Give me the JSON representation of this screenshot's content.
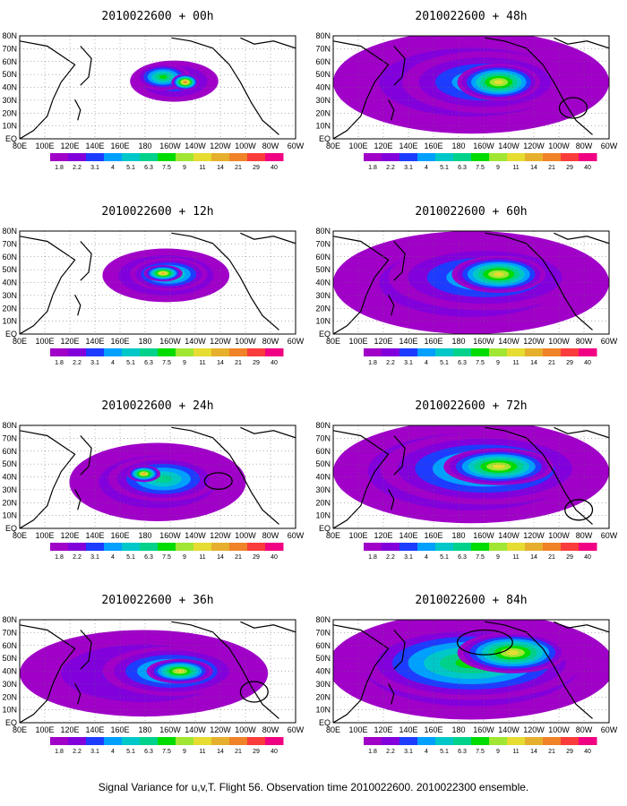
{
  "caption": "Signal Variance for u,v,T. Flight 56. Observation time 2010022600. 2010022300 ensemble.",
  "colorbar": {
    "labels": [
      "1.8",
      "2.2",
      "3.1",
      "4",
      "5.1",
      "6.3",
      "7.5",
      "9",
      "11",
      "14",
      "21",
      "29",
      "40"
    ],
    "colors": [
      "#a000c8",
      "#8200dc",
      "#1e3cff",
      "#00a0ff",
      "#00c8c8",
      "#00d28c",
      "#00dc00",
      "#a0e632",
      "#e6dc32",
      "#e6af2d",
      "#f08228",
      "#fa3c3c",
      "#f00082"
    ]
  },
  "x_ticks": [
    "80E",
    "100E",
    "120E",
    "140E",
    "160E",
    "180",
    "160W",
    "140W",
    "120W",
    "100W",
    "80W",
    "60W"
  ],
  "y_ticks": [
    "80N",
    "70N",
    "60N",
    "50N",
    "40N",
    "30N",
    "20N",
    "10N",
    "EQ"
  ],
  "panels": [
    {
      "title": "2010022600 + 00h",
      "lead_hours": 0,
      "blobs": [
        [
          0.56,
          0.44,
          0.16,
          0.2,
          3
        ],
        [
          0.52,
          0.4,
          0.1,
          0.13,
          6
        ],
        [
          0.6,
          0.45,
          0.05,
          0.08,
          10
        ]
      ],
      "circle": null
    },
    {
      "title": "2010022600 + 12h",
      "lead_hours": 12,
      "blobs": [
        [
          0.53,
          0.43,
          0.23,
          0.26,
          3
        ],
        [
          0.54,
          0.42,
          0.14,
          0.16,
          6
        ],
        [
          0.52,
          0.41,
          0.07,
          0.08,
          9
        ]
      ],
      "circle": null
    },
    {
      "title": "2010022600 + 24h",
      "lead_hours": 24,
      "blobs": [
        [
          0.5,
          0.55,
          0.32,
          0.38,
          2
        ],
        [
          0.52,
          0.52,
          0.2,
          0.22,
          5
        ],
        [
          0.45,
          0.47,
          0.06,
          0.08,
          9
        ]
      ],
      "circle": [
        0.72,
        0.54,
        0.05,
        0.08
      ]
    },
    {
      "title": "2010022600 + 36h",
      "lead_hours": 36,
      "blobs": [
        [
          0.45,
          0.52,
          0.45,
          0.42,
          2
        ],
        [
          0.55,
          0.5,
          0.25,
          0.24,
          5
        ],
        [
          0.58,
          0.5,
          0.12,
          0.12,
          8
        ]
      ],
      "circle": [
        0.85,
        0.7,
        0.05,
        0.1
      ]
    },
    {
      "title": "2010022600 + 48h",
      "lead_hours": 48,
      "blobs": [
        [
          0.5,
          0.45,
          0.5,
          0.5,
          2
        ],
        [
          0.55,
          0.45,
          0.3,
          0.3,
          4
        ],
        [
          0.6,
          0.45,
          0.15,
          0.18,
          8
        ]
      ],
      "circle": [
        0.87,
        0.7,
        0.05,
        0.1
      ]
    },
    {
      "title": "2010022600 + 60h",
      "lead_hours": 60,
      "blobs": [
        [
          0.5,
          0.5,
          0.5,
          0.5,
          2
        ],
        [
          0.55,
          0.45,
          0.35,
          0.32,
          4
        ],
        [
          0.6,
          0.42,
          0.17,
          0.18,
          8
        ]
      ],
      "circle": null
    },
    {
      "title": "2010022600 + 72h",
      "lead_hours": 72,
      "blobs": [
        [
          0.5,
          0.45,
          0.5,
          0.5,
          3
        ],
        [
          0.55,
          0.42,
          0.38,
          0.35,
          5
        ],
        [
          0.6,
          0.4,
          0.2,
          0.18,
          8
        ]
      ],
      "circle": [
        0.89,
        0.82,
        0.05,
        0.1
      ]
    },
    {
      "title": "2010022600 + 84h",
      "lead_hours": 84,
      "blobs": [
        [
          0.5,
          0.45,
          0.52,
          0.52,
          3
        ],
        [
          0.5,
          0.42,
          0.4,
          0.36,
          6
        ],
        [
          0.65,
          0.32,
          0.2,
          0.2,
          8
        ]
      ],
      "circle": [
        0.55,
        0.22,
        0.1,
        0.12
      ]
    }
  ]
}
